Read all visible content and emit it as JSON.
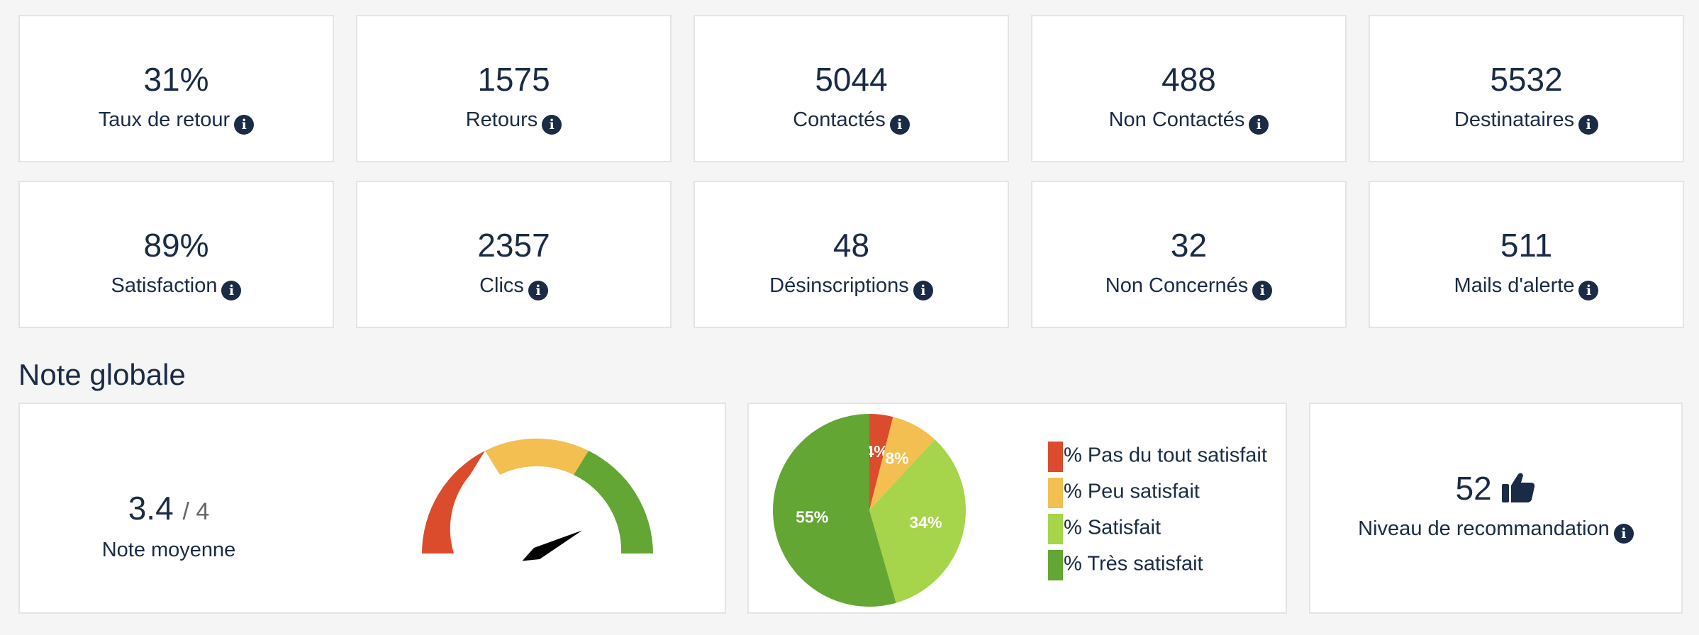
{
  "stats": [
    {
      "value": "31%",
      "label": "Taux de retour"
    },
    {
      "value": "1575",
      "label": "Retours"
    },
    {
      "value": "5044",
      "label": "Contactés"
    },
    {
      "value": "488",
      "label": "Non Contactés"
    },
    {
      "value": "5532",
      "label": "Destinataires"
    },
    {
      "value": "89%",
      "label": "Satisfaction"
    },
    {
      "value": "2357",
      "label": "Clics"
    },
    {
      "value": "48",
      "label": "Désinscriptions"
    },
    {
      "value": "32",
      "label": "Non Concernés"
    },
    {
      "value": "511",
      "label": "Mails d'alerte"
    }
  ],
  "section_title": "Note globale",
  "gauge": {
    "score": 3.4,
    "max": {
      "value": 4,
      "label": "/ 4"
    },
    "label": "Note moyenne"
  },
  "chart_data": {
    "type": "pie",
    "categories": [
      "% Pas du tout satisfait",
      "% Peu satisfait",
      "% Satisfait",
      "% Très satisfait"
    ],
    "values": [
      4,
      8,
      34,
      55
    ],
    "value_labels": [
      "4%",
      "8%",
      "34%",
      "55%"
    ],
    "colors": [
      "#db4c2c",
      "#f2bf50",
      "#a6d44a",
      "#63a633"
    ]
  },
  "recommendation": {
    "value": 52,
    "label": "Niveau de recommandation"
  }
}
